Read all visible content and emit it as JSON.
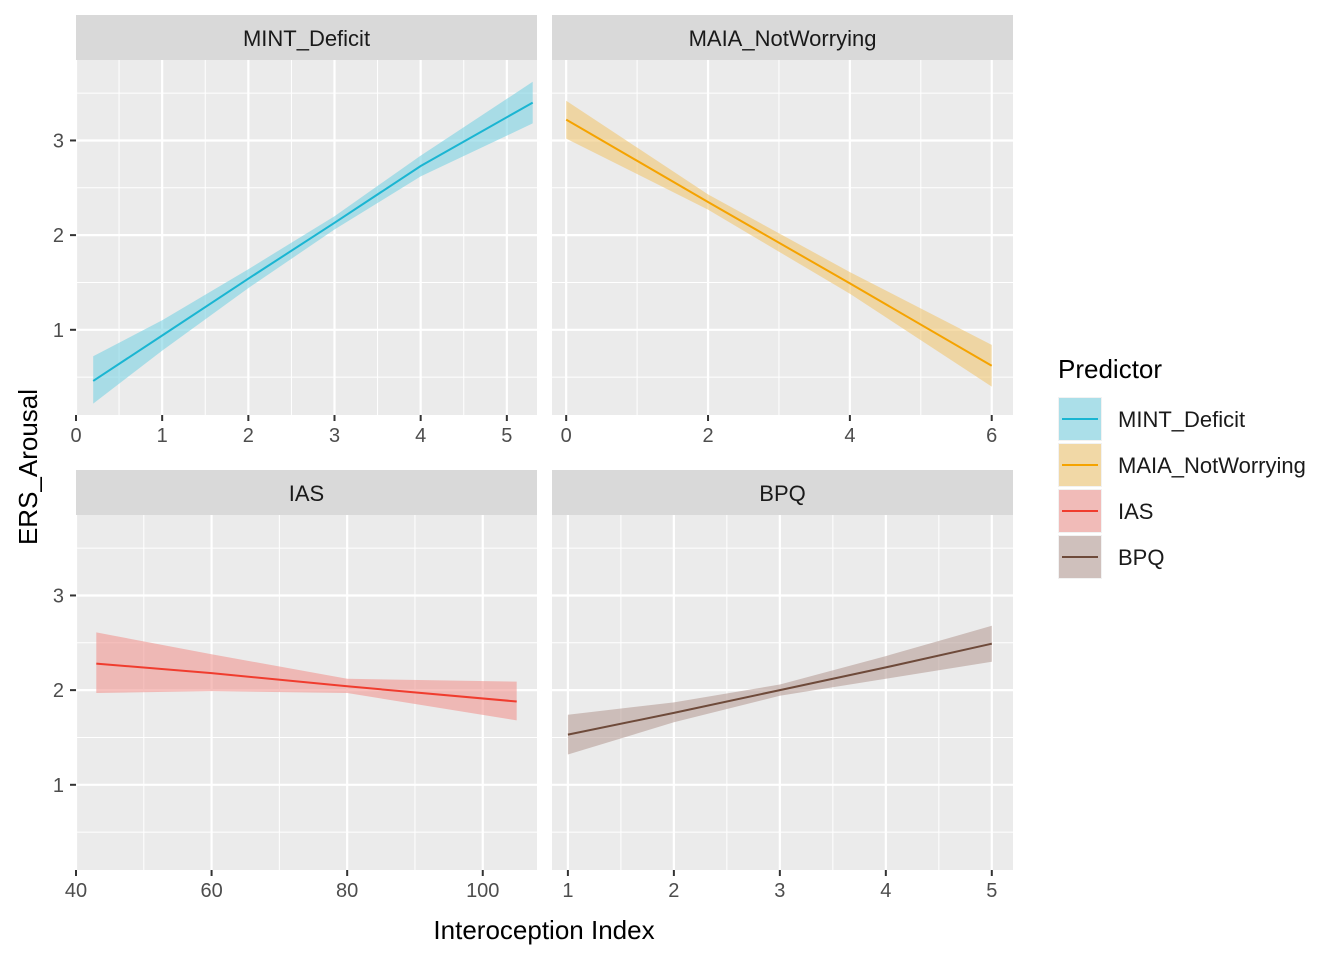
{
  "chart_data": {
    "type": "line",
    "layout": "facet-grid-2x2",
    "xlabel": "Interoception Index",
    "ylabel": "ERS_Arousal",
    "y_ticks": [
      1,
      2,
      3
    ],
    "ylim": [
      0.1,
      3.85
    ],
    "grid": true,
    "legend": {
      "title": "Predictor",
      "placement": "right",
      "entries": [
        "MINT_Deficit",
        "MAIA_NotWorrying",
        "IAS",
        "BPQ"
      ]
    },
    "panels": [
      {
        "strip": "MINT_Deficit",
        "color": "#1ab5d2",
        "fill": "#7fd3e3",
        "xlim": [
          0,
          5.35
        ],
        "x_ticks": [
          0,
          1,
          2,
          3,
          4,
          5
        ],
        "x": [
          0.2,
          1,
          2,
          3,
          4,
          5.3
        ],
        "y": [
          0.46,
          0.94,
          1.54,
          2.13,
          2.73,
          3.4
        ],
        "lower": [
          0.22,
          0.78,
          1.44,
          2.06,
          2.62,
          3.18
        ],
        "upper": [
          0.72,
          1.1,
          1.64,
          2.2,
          2.84,
          3.62
        ]
      },
      {
        "strip": "MAIA_NotWorrying",
        "color": "#f5a300",
        "fill": "#f0c877",
        "xlim": [
          -0.2,
          6.3
        ],
        "x_ticks": [
          0,
          2,
          4,
          6
        ],
        "x": [
          0,
          2,
          4,
          6
        ],
        "y": [
          3.22,
          2.35,
          1.49,
          0.62
        ],
        "lower": [
          3.02,
          2.27,
          1.38,
          0.4
        ],
        "upper": [
          3.42,
          2.43,
          1.61,
          0.84
        ]
      },
      {
        "strip": "IAS",
        "color": "#f03c2e",
        "fill": "#f09a94",
        "xlim": [
          40,
          108
        ],
        "x_ticks": [
          40,
          60,
          80,
          100
        ],
        "x": [
          43,
          60,
          80,
          105
        ],
        "y": [
          2.28,
          2.18,
          2.04,
          1.88
        ],
        "lower": [
          1.97,
          1.99,
          1.97,
          1.68
        ],
        "upper": [
          2.61,
          2.38,
          2.12,
          2.09
        ]
      },
      {
        "strip": "BPQ",
        "color": "#6e4a3a",
        "fill": "#b9a29b",
        "xlim": [
          0.85,
          5.2
        ],
        "x_ticks": [
          1,
          2,
          3,
          4,
          5
        ],
        "x": [
          1,
          2,
          3,
          4,
          5
        ],
        "y": [
          1.53,
          1.76,
          2.0,
          2.24,
          2.49
        ],
        "lower": [
          1.32,
          1.66,
          1.94,
          2.12,
          2.3
        ],
        "upper": [
          1.74,
          1.87,
          2.06,
          2.36,
          2.68
        ]
      }
    ]
  }
}
